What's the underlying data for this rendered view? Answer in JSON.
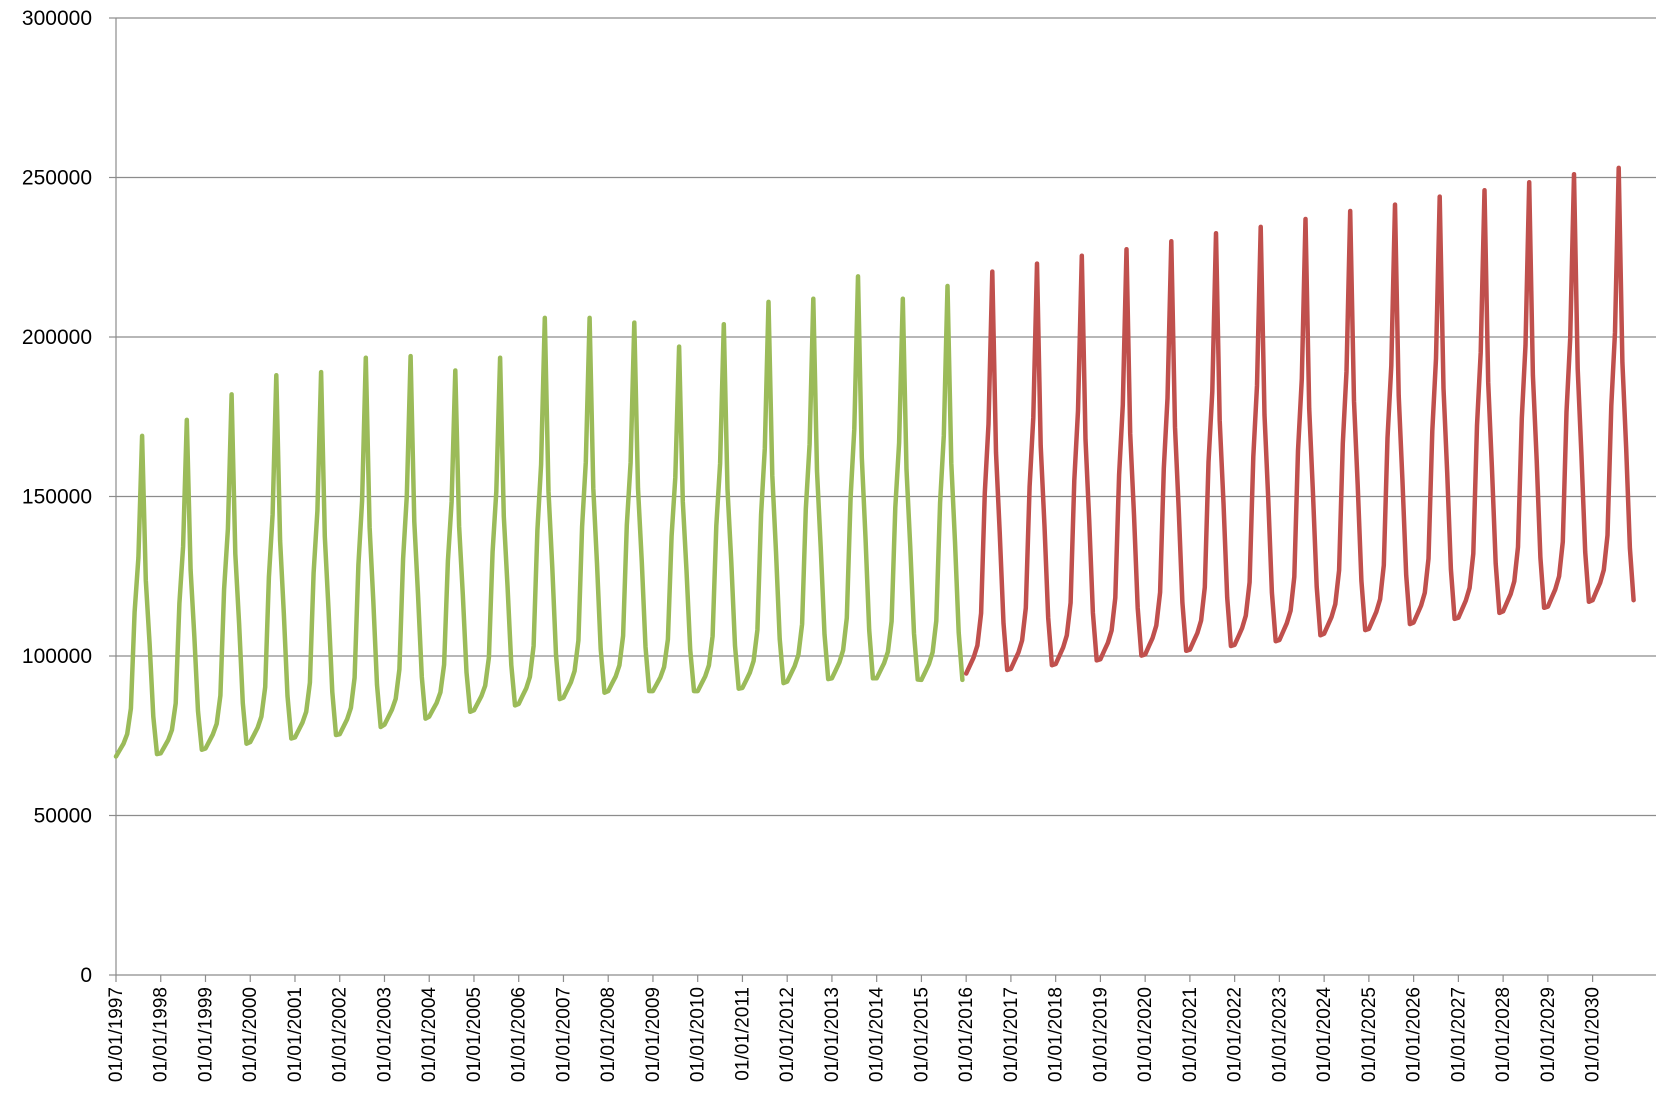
{
  "chart_data": {
    "type": "line",
    "title": "",
    "xlabel": "",
    "ylabel": "",
    "ylim": [
      0,
      300000
    ],
    "yticks": [
      0,
      50000,
      100000,
      150000,
      200000,
      250000,
      300000
    ],
    "yticks_labels": [
      "0",
      "50000",
      "100000",
      "150000",
      "200000",
      "250000",
      "300000"
    ],
    "grid": true,
    "legend": "none",
    "x_start": "1997-01",
    "x_end": "2031-06",
    "x_ticks": [
      "01/01/1997",
      "01/01/1998",
      "01/01/1999",
      "01/01/2000",
      "01/01/2001",
      "01/01/2002",
      "01/01/2003",
      "01/01/2004",
      "01/01/2005",
      "01/01/2006",
      "01/01/2007",
      "01/01/2008",
      "01/01/2009",
      "01/01/2010",
      "01/01/2011",
      "01/01/2012",
      "01/01/2013",
      "01/01/2014",
      "01/01/2015",
      "01/01/2016",
      "01/01/2017",
      "01/01/2018",
      "01/01/2019",
      "01/01/2020",
      "01/01/2021",
      "01/01/2022",
      "01/01/2023",
      "01/01/2024",
      "01/01/2025",
      "01/01/2026",
      "01/01/2027",
      "01/01/2028",
      "01/01/2029",
      "01/01/2030"
    ],
    "series": [
      {
        "color": "#9bbb59",
        "yearly": [
          {
            "year": 1997,
            "trough": 68500,
            "peak": 169000
          },
          {
            "year": 1998,
            "trough": 69500,
            "peak": 174000
          },
          {
            "year": 1999,
            "trough": 71000,
            "peak": 182000
          },
          {
            "year": 2000,
            "trough": 73000,
            "peak": 188000
          },
          {
            "year": 2001,
            "trough": 74500,
            "peak": 189000
          },
          {
            "year": 2002,
            "trough": 75500,
            "peak": 193500
          },
          {
            "year": 2003,
            "trough": 78500,
            "peak": 194000
          },
          {
            "year": 2004,
            "trough": 81000,
            "peak": 189500
          },
          {
            "year": 2005,
            "trough": 83000,
            "peak": 193500
          },
          {
            "year": 2006,
            "trough": 85000,
            "peak": 206000
          },
          {
            "year": 2007,
            "trough": 87000,
            "peak": 206000
          },
          {
            "year": 2008,
            "trough": 89000,
            "peak": 204500
          },
          {
            "year": 2009,
            "trough": 89000,
            "peak": 197000
          },
          {
            "year": 2010,
            "trough": 89000,
            "peak": 204000
          },
          {
            "year": 2011,
            "trough": 90000,
            "peak": 211000
          },
          {
            "year": 2012,
            "trough": 92000,
            "peak": 212000
          },
          {
            "year": 2013,
            "trough": 93000,
            "peak": 219000
          },
          {
            "year": 2014,
            "trough": 93000,
            "peak": 212000
          },
          {
            "year": 2015,
            "trough": 92500,
            "peak": 216000
          }
        ]
      },
      {
        "color": "#c0504d",
        "yearly": [
          {
            "year": 2016,
            "trough": 94500,
            "peak": 220500
          },
          {
            "year": 2017,
            "trough": 96000,
            "peak": 223000
          },
          {
            "year": 2018,
            "trough": 97500,
            "peak": 225500
          },
          {
            "year": 2019,
            "trough": 99000,
            "peak": 227500
          },
          {
            "year": 2020,
            "trough": 100500,
            "peak": 230000
          },
          {
            "year": 2021,
            "trough": 102000,
            "peak": 232500
          },
          {
            "year": 2022,
            "trough": 103500,
            "peak": 234500
          },
          {
            "year": 2023,
            "trough": 105000,
            "peak": 237000
          },
          {
            "year": 2024,
            "trough": 107000,
            "peak": 239500
          },
          {
            "year": 2025,
            "trough": 108500,
            "peak": 241500
          },
          {
            "year": 2026,
            "trough": 110500,
            "peak": 244000
          },
          {
            "year": 2027,
            "trough": 112000,
            "peak": 246000
          },
          {
            "year": 2028,
            "trough": 114000,
            "peak": 248500
          },
          {
            "year": 2029,
            "trough": 115500,
            "peak": 251000
          },
          {
            "year": 2030,
            "trough": 117500,
            "peak": 253000
          }
        ]
      }
    ]
  }
}
